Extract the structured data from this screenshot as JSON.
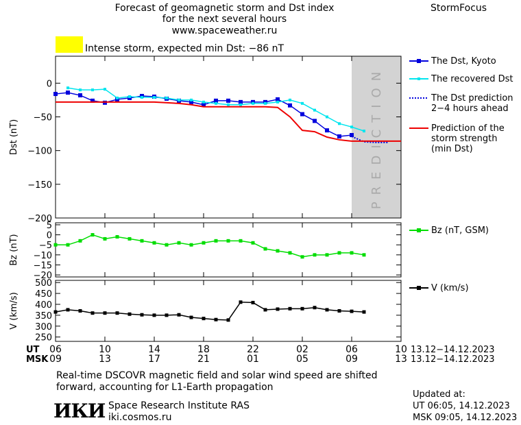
{
  "header": {
    "title_line1": "Forecast of geomagnetic storm and Dst index",
    "title_line2": "for the next several hours",
    "url": "www.spaceweather.ru",
    "brand": "StormFocus",
    "alert_text": "Intense storm, expected min Dst: −86 nT",
    "alert_color": "#ffff00"
  },
  "footer": {
    "note_line1": "Real-time DSCOVR magnetic field and solar wind speed are shifted",
    "note_line2": "forward, accounting for L1-Earth propagation",
    "logo_text": "ИКИ",
    "institute": "Space Research Institute RAS",
    "site": "iki.cosmos.ru",
    "updated_label": "Updated at:",
    "updated_ut": "UT   06:05, 14.12.2023",
    "updated_msk": "MSK 09:05, 14.12.2023"
  },
  "chart_data": {
    "type": "line",
    "x_axis": {
      "ut_label": "UT",
      "msk_label": "MSK",
      "ut_ticks": [
        "06",
        "10",
        "14",
        "18",
        "22",
        "02",
        "06",
        "10"
      ],
      "msk_ticks": [
        "09",
        "13",
        "17",
        "21",
        "01",
        "05",
        "09",
        "13"
      ],
      "date_range_ut": "13.12−14.12.2023",
      "date_range_msk": "13.12−14.12.2023",
      "range_hours_ut": [
        6,
        34
      ]
    },
    "prediction_zone": {
      "label": "PREDICTION",
      "start_hour": 30,
      "end_hour": 34,
      "color": "#d3d3d3"
    },
    "panels": [
      {
        "id": "dst",
        "ylabel": "Dst (nT)",
        "ylim": [
          -200,
          40
        ],
        "yticks": [
          0,
          -50,
          -100,
          -150,
          -200
        ],
        "ytick_labels": [
          "0",
          "−50",
          "−100",
          "−150",
          "−200"
        ],
        "series": [
          {
            "name": "The Dst, Kyoto",
            "style": "blue-squares",
            "color": "#0000dd",
            "x": [
              6,
              7,
              8,
              9,
              10,
              11,
              12,
              13,
              14,
              15,
              16,
              17,
              18,
              19,
              20,
              21,
              22,
              23,
              24,
              25,
              26,
              27,
              28,
              29,
              30
            ],
            "y": [
              -16,
              -14,
              -18,
              -26,
              -29,
              -24,
              -22,
              -19,
              -20,
              -23,
              -26,
              -28,
              -32,
              -26,
              -26,
              -28,
              -28,
              -28,
              -24,
              -33,
              -46,
              -56,
              -70,
              -79,
              -77
            ]
          },
          {
            "name": "The recovered Dst",
            "style": "cyan-line",
            "color": "#00e5ee",
            "x": [
              7,
              8,
              9,
              10,
              11,
              12,
              13,
              14,
              15,
              16,
              17,
              18,
              19,
              20,
              21,
              22,
              23,
              24,
              25,
              26,
              27,
              28,
              29,
              30,
              31
            ],
            "y": [
              -7,
              -10,
              -10,
              -9,
              -22,
              -20,
              -21,
              -21,
              -22,
              -25,
              -25,
              -28,
              -30,
              -32,
              -32,
              -30,
              -30,
              -28,
              -25,
              -30,
              -40,
              -50,
              -60,
              -65,
              -71
            ]
          },
          {
            "name": "The Dst prediction",
            "sublabel": "2−4 hours ahead",
            "style": "blue-dotted",
            "color": "#0000dd",
            "x": [
              30,
              31,
              32,
              33
            ],
            "y": [
              -79,
              -87,
              -88,
              -88
            ]
          },
          {
            "name": "Prediction of the",
            "sublabel": "storm strength",
            "sublabel2": "(min Dst)",
            "style": "red-line",
            "color": "#ee0000",
            "x": [
              6,
              10,
              14,
              16,
              17,
              18,
              19,
              20,
              21,
              22,
              23,
              24,
              25,
              26,
              27,
              28,
              29,
              30,
              31,
              32,
              33,
              34
            ],
            "y": [
              -28,
              -28,
              -28,
              -30,
              -32,
              -35,
              -35,
              -35,
              -35,
              -35,
              -35,
              -36,
              -50,
              -70,
              -72,
              -80,
              -84,
              -86,
              -86,
              -86,
              -86,
              -86
            ]
          }
        ]
      },
      {
        "id": "bz",
        "ylabel": "Bz (nT)",
        "ylim": [
          -21,
          6
        ],
        "yticks": [
          5,
          0,
          -5,
          -10,
          -15,
          -20
        ],
        "ytick_labels": [
          "5",
          "0",
          "−5",
          "−10",
          "−15",
          "−20"
        ],
        "series": [
          {
            "name": "Bz (nT, GSM)",
            "color": "#00dd00",
            "x": [
              6,
              7,
              8,
              9,
              10,
              11,
              12,
              13,
              14,
              15,
              16,
              17,
              18,
              19,
              20,
              21,
              22,
              23,
              24,
              25,
              26,
              27,
              28,
              29,
              30,
              31
            ],
            "y": [
              -5,
              -5,
              -3,
              0,
              -2,
              -1,
              -2,
              -3,
              -4,
              -5,
              -4,
              -5,
              -4,
              -3,
              -3,
              -3,
              -4,
              -7,
              -8,
              -9,
              -11,
              -10,
              -10,
              -9,
              -9,
              -10
            ]
          }
        ]
      },
      {
        "id": "v",
        "ylabel": "V (km/s)",
        "ylim": [
          230,
          510
        ],
        "yticks": [
          500,
          450,
          400,
          350,
          300,
          250
        ],
        "ytick_labels": [
          "500",
          "450",
          "400",
          "350",
          "300",
          "250"
        ],
        "series": [
          {
            "name": "V (km/s)",
            "color": "#000000",
            "x": [
              6,
              7,
              8,
              9,
              10,
              11,
              12,
              13,
              14,
              15,
              16,
              17,
              18,
              19,
              20,
              21,
              22,
              23,
              24,
              25,
              26,
              27,
              28,
              29,
              30,
              31
            ],
            "y": [
              365,
              375,
              370,
              360,
              360,
              360,
              355,
              352,
              350,
              350,
              352,
              340,
              335,
              330,
              328,
              410,
              408,
              375,
              378,
              380,
              380,
              385,
              375,
              370,
              368,
              365
            ]
          }
        ]
      }
    ]
  }
}
